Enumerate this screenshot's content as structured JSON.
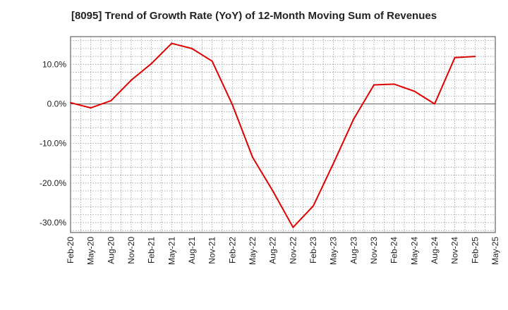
{
  "chart_data": {
    "type": "line",
    "title": "[8095]  Trend of Growth Rate (YoY) of 12-Month Moving Sum of Revenues",
    "xlabel": "",
    "ylabel": "",
    "x_tick_labels": [
      "Feb-20",
      "May-20",
      "Aug-20",
      "Nov-20",
      "Feb-21",
      "May-21",
      "Aug-21",
      "Nov-21",
      "Feb-22",
      "May-22",
      "Aug-22",
      "Nov-22",
      "Feb-23",
      "May-23",
      "Aug-23",
      "Nov-23",
      "Feb-24",
      "May-24",
      "Aug-24",
      "Nov-24",
      "Feb-25",
      "May-25"
    ],
    "y_tick_labels": [
      "10.0%",
      "0.0%",
      "-10.0%",
      "-20.0%",
      "-30.0%"
    ],
    "y_ticks": [
      10,
      0,
      -10,
      -20,
      -30
    ],
    "ylim": [
      -32.5,
      17
    ],
    "grid": true,
    "color": "#e00000",
    "series": [
      {
        "values": [
          0.3,
          -1.0,
          0.8,
          6.0,
          10.2,
          15.3,
          14.0,
          10.8,
          -0.2,
          -13.5,
          -22.0,
          -31.2,
          -25.8,
          -15.0,
          -3.8,
          4.8,
          5.0,
          3.2,
          0.0,
          11.7,
          12.0
        ]
      }
    ]
  }
}
